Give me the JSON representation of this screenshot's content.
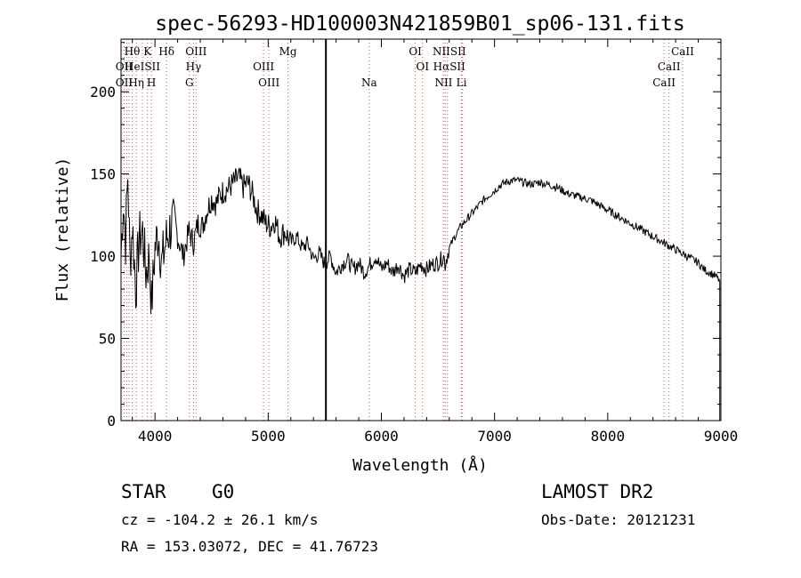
{
  "chart_data": {
    "type": "line",
    "title": "spec-56293-HD100003N421859B01_sp06-131.fits",
    "xlabel": "Wavelength (Å)",
    "ylabel": "Flux (relative)",
    "xlim": [
      3700,
      9000
    ],
    "ylim": [
      0,
      232
    ],
    "x_ticks": [
      4000,
      5000,
      6000,
      7000,
      8000,
      9000
    ],
    "y_ticks": [
      0,
      50,
      100,
      150,
      200
    ],
    "grid": false,
    "legend": "none",
    "series": [
      {
        "x": [
          3700,
          3720,
          3740,
          3760,
          3780,
          3800,
          3830,
          3860,
          3890,
          3920,
          3950,
          3970,
          4000,
          4030,
          4060,
          4100,
          4150,
          4200,
          4250,
          4300,
          4340,
          4380,
          4420,
          4460,
          4500,
          4540,
          4580,
          4620,
          4660,
          4700,
          4740,
          4780,
          4820,
          4860,
          4900,
          4940,
          4980,
          5020,
          5060,
          5100,
          5150,
          5200,
          5250,
          5300,
          5350,
          5400,
          5450,
          5500,
          5550,
          5600,
          5650,
          5700,
          5750,
          5800,
          5850,
          5900,
          5950,
          6000,
          6050,
          6100,
          6150,
          6200,
          6250,
          6300,
          6350,
          6400,
          6450,
          6500,
          6550,
          6563,
          6600,
          6650,
          6700,
          6750,
          6800,
          6850,
          6900,
          6950,
          7000,
          7050,
          7100,
          7150,
          7200,
          7250,
          7300,
          7350,
          7400,
          7450,
          7500,
          7550,
          7600,
          7650,
          7700,
          7750,
          7800,
          7850,
          7900,
          7950,
          8000,
          8050,
          8100,
          8150,
          8200,
          8250,
          8300,
          8350,
          8400,
          8450,
          8500,
          8550,
          8600,
          8650,
          8700,
          8750,
          8800,
          8850,
          8900,
          8950,
          8990
        ],
        "values": [
          100,
          135,
          110,
          150,
          95,
          120,
          80,
          110,
          115,
          90,
          100,
          70,
          105,
          115,
          95,
          110,
          120,
          112,
          100,
          115,
          108,
          120,
          118,
          128,
          135,
          132,
          138,
          140,
          142,
          145,
          148,
          142,
          145,
          138,
          128,
          125,
          120,
          118,
          122,
          112,
          115,
          108,
          112,
          105,
          108,
          98,
          102,
          95,
          100,
          90,
          95,
          98,
          92,
          96,
          90,
          95,
          100,
          92,
          96,
          90,
          95,
          88,
          92,
          90,
          95,
          92,
          95,
          96,
          100,
          95,
          105,
          112,
          118,
          122,
          126,
          130,
          134,
          137,
          140,
          143,
          145,
          146,
          146,
          145,
          144,
          144,
          145,
          144,
          143,
          142,
          140,
          138,
          137,
          136,
          135,
          134,
          132,
          130,
          128,
          126,
          124,
          122,
          120,
          118,
          116,
          114,
          112,
          110,
          108,
          106,
          104,
          102,
          100,
          98,
          96,
          92,
          90,
          88,
          85
        ]
      }
    ],
    "annotations": {
      "vertical_marker": 5510,
      "lines": [
        {
          "label": "Hθ",
          "x": 3798,
          "row": 0
        },
        {
          "label": "K",
          "x": 3934,
          "row": 0
        },
        {
          "label": "Hδ",
          "x": 4102,
          "row": 0
        },
        {
          "label": "OIII",
          "x": 4363,
          "row": 0
        },
        {
          "label": "Mg",
          "x": 5175,
          "row": 0
        },
        {
          "label": "OI",
          "x": 6300,
          "row": 0
        },
        {
          "label": "NIISII",
          "x": 6600,
          "row": 0
        },
        {
          "label": "CaII",
          "x": 8662,
          "row": 0
        },
        {
          "label": "OII",
          "x": 3727,
          "row": 1
        },
        {
          "label": "HeISII",
          "x": 3889,
          "row": 1
        },
        {
          "label": "Hγ",
          "x": 4340,
          "row": 1
        },
        {
          "label": "OIII",
          "x": 4959,
          "row": 1
        },
        {
          "label": "OI",
          "x": 6364,
          "row": 1
        },
        {
          "label": "HαSII",
          "x": 6600,
          "row": 1
        },
        {
          "label": "CaII",
          "x": 8542,
          "row": 1
        },
        {
          "label": "OII",
          "x": 3727,
          "row": 2
        },
        {
          "label": "Hη",
          "x": 3835,
          "row": 2
        },
        {
          "label": "H",
          "x": 3968,
          "row": 2
        },
        {
          "label": "G",
          "x": 4304,
          "row": 2
        },
        {
          "label": "OIII",
          "x": 5007,
          "row": 2
        },
        {
          "label": "Na",
          "x": 5893,
          "row": 2
        },
        {
          "label": "NII",
          "x": 6550,
          "row": 2
        },
        {
          "label": "Li",
          "x": 6708,
          "row": 2
        },
        {
          "label": "CaII",
          "x": 8498,
          "row": 2
        }
      ],
      "dotted_lines": [
        3727,
        3750,
        3771,
        3798,
        3835,
        3889,
        3934,
        3968,
        4102,
        4304,
        4340,
        4363,
        4959,
        5007,
        5175,
        5893,
        6300,
        6364,
        6548,
        6563,
        6583,
        6708,
        6717,
        8498,
        8542,
        8662
      ]
    }
  },
  "info": {
    "class": "STAR",
    "subclass": "G0",
    "survey": "LAMOST DR2",
    "cz": "cz = -104.2 ± 26.1 km/s",
    "obs_date": "Obs-Date: 20121231",
    "radec": "RA = 153.03072, DEC =  41.76723"
  }
}
